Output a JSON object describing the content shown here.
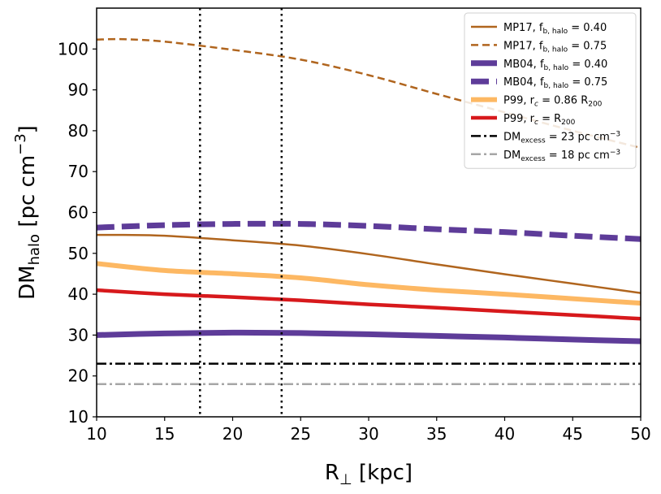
{
  "chart_data": {
    "type": "line",
    "xlim": [
      10,
      50
    ],
    "ylim": [
      10,
      110
    ],
    "x_ticks": [
      10,
      15,
      20,
      25,
      30,
      35,
      40,
      45,
      50
    ],
    "y_ticks": [
      10,
      20,
      30,
      40,
      50,
      60,
      70,
      80,
      90,
      100
    ],
    "xlabel": {
      "main": "R",
      "sub": "⊥",
      "rest": " [kpc]"
    },
    "ylabel": {
      "main": "DM",
      "sub": "halo",
      "rest": " [pc cm",
      "sup": "−3",
      "close": "]"
    },
    "legend_position": "top-right",
    "grid": false,
    "vlines": [
      {
        "x": 17.6,
        "color": "#000000",
        "style": "dotted"
      },
      {
        "x": 23.6,
        "color": "#000000",
        "style": "dotted"
      }
    ],
    "series": [
      {
        "key": "mp17_040",
        "legend": [
          {
            "t": "MP17, f"
          },
          {
            "t": "b, halo",
            "sub": true
          },
          {
            "t": " = 0.40"
          }
        ],
        "color": "#b0651e",
        "width": 2.5,
        "dash": "",
        "x": [
          10,
          12,
          15,
          20,
          25,
          30,
          35,
          40,
          45,
          50
        ],
        "y": [
          54.5,
          54.5,
          54.3,
          53.2,
          51.9,
          49.8,
          47.3,
          44.9,
          42.6,
          40.3
        ]
      },
      {
        "key": "mp17_075",
        "legend": [
          {
            "t": "MP17, f"
          },
          {
            "t": "b, halo",
            "sub": true
          },
          {
            "t": " = 0.75"
          }
        ],
        "color": "#b0651e",
        "width": 2.5,
        "dash": "9,5",
        "x": [
          10,
          12,
          15,
          20,
          25,
          30,
          35,
          40,
          45,
          50
        ],
        "y": [
          102.3,
          102.4,
          101.8,
          99.8,
          97.4,
          93.6,
          89.0,
          84.5,
          80.0,
          75.8
        ]
      },
      {
        "key": "mb04_040",
        "legend": [
          {
            "t": "MB04, f"
          },
          {
            "t": "b, halo",
            "sub": true
          },
          {
            "t": " = 0.40"
          }
        ],
        "color": "#5e3c99",
        "width": 7,
        "dash": "",
        "x": [
          10,
          15,
          20,
          25,
          30,
          35,
          40,
          45,
          50
        ],
        "y": [
          30.0,
          30.4,
          30.6,
          30.5,
          30.2,
          29.8,
          29.4,
          28.9,
          28.5
        ]
      },
      {
        "key": "mb04_075",
        "legend": [
          {
            "t": "MB04, f"
          },
          {
            "t": "b, halo",
            "sub": true
          },
          {
            "t": " = 0.75"
          }
        ],
        "color": "#5e3c99",
        "width": 7,
        "dash": "22,9",
        "x": [
          10,
          15,
          20,
          25,
          30,
          35,
          40,
          45,
          50
        ],
        "y": [
          56.3,
          56.9,
          57.2,
          57.2,
          56.7,
          55.9,
          55.2,
          54.3,
          53.5
        ]
      },
      {
        "key": "p99_086",
        "legend": [
          {
            "t": "P99, r"
          },
          {
            "t": "c",
            "sub": true,
            "italic": true
          },
          {
            "t": " = 0.86 R"
          },
          {
            "t": "200",
            "sub": true
          }
        ],
        "color": "#fdb863",
        "width": 6,
        "dash": "",
        "x": [
          10,
          15,
          20,
          25,
          30,
          35,
          40,
          45,
          50
        ],
        "y": [
          47.5,
          45.8,
          45.0,
          44.0,
          42.3,
          41.0,
          40.0,
          38.9,
          37.8
        ]
      },
      {
        "key": "p99_1",
        "legend": [
          {
            "t": "P99, r"
          },
          {
            "t": "c",
            "sub": true,
            "italic": true
          },
          {
            "t": " = R"
          },
          {
            "t": "200",
            "sub": true
          }
        ],
        "color": "#d7191c",
        "width": 4.5,
        "dash": "",
        "x": [
          10,
          15,
          20,
          25,
          30,
          35,
          40,
          45,
          50
        ],
        "y": [
          41.0,
          40.0,
          39.3,
          38.5,
          37.5,
          36.7,
          35.8,
          34.9,
          34.0
        ]
      },
      {
        "key": "dm_excess_23",
        "legend": [
          {
            "t": "DM"
          },
          {
            "t": "excess",
            "sub": true
          },
          {
            "t": " = 23 pc cm"
          },
          {
            "t": "−3",
            "sup": true
          }
        ],
        "color": "#000000",
        "width": 2.5,
        "dash": "12,4,3,4",
        "x": [
          10,
          50
        ],
        "y": [
          23,
          23
        ]
      },
      {
        "key": "dm_excess_18",
        "legend": [
          {
            "t": "DM"
          },
          {
            "t": "excess",
            "sub": true
          },
          {
            "t": " = 18 pc cm"
          },
          {
            "t": "−3",
            "sup": true
          }
        ],
        "color": "#a6a6a6",
        "width": 2.5,
        "dash": "12,4,3,4",
        "x": [
          10,
          50
        ],
        "y": [
          18,
          18
        ]
      }
    ]
  }
}
